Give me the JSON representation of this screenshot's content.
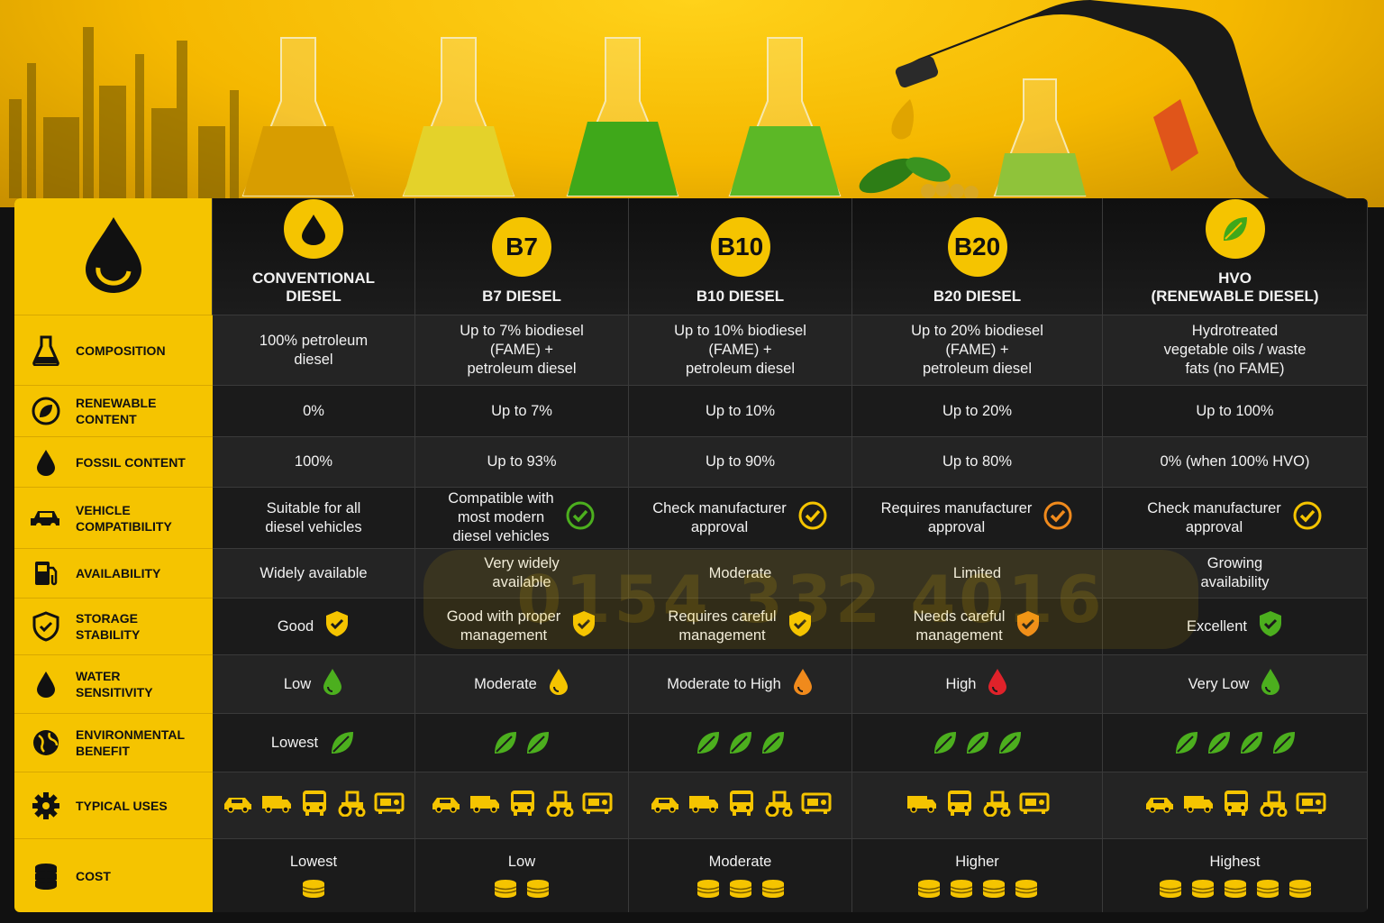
{
  "columns": [
    {
      "badge": "",
      "title": "CONVENTIONAL\nDIESEL"
    },
    {
      "badge": "B7",
      "title": "B7 DIESEL"
    },
    {
      "badge": "B10",
      "title": "B10 DIESEL"
    },
    {
      "badge": "B20",
      "title": "B20 DIESEL"
    },
    {
      "badge": "",
      "title": "HVO\n(RENEWABLE DIESEL)"
    }
  ],
  "rows": {
    "composition": {
      "label": "COMPOSITION",
      "values": [
        "100% petroleum\ndiesel",
        "Up to 7% biodiesel\n(FAME) +\npetroleum diesel",
        "Up to 10% biodiesel\n(FAME) +\npetroleum diesel",
        "Up to 20% biodiesel\n(FAME) +\npetroleum diesel",
        "Hydrotreated\nvegetable oils / waste\nfats (no FAME)"
      ]
    },
    "renewable": {
      "label": "RENEWABLE\nCONTENT",
      "values": [
        "0%",
        "Up to 7%",
        "Up to 10%",
        "Up to 20%",
        "Up to 100%"
      ]
    },
    "fossil": {
      "label": "FOSSIL CONTENT",
      "values": [
        "100%",
        "Up to 93%",
        "Up to 90%",
        "Up to 80%",
        "0% (when 100% HVO)"
      ]
    },
    "vehicle": {
      "label": "VEHICLE\nCOMPATIBILITY",
      "values": [
        "Suitable for all\ndiesel vehicles",
        "Compatible with\nmost modern\ndiesel vehicles",
        "Check manufacturer\napproval",
        "Requires manufacturer\napproval",
        "Check manufacturer\napproval"
      ],
      "icon_colors": [
        "",
        "#4caf1e",
        "#f5c400",
        "#f08a1c",
        "#f5c400"
      ]
    },
    "availability": {
      "label": "AVAILABILITY",
      "values": [
        "Widely available",
        "Very widely\navailable",
        "Moderate",
        "Limited",
        "Growing\navailability"
      ]
    },
    "storage": {
      "label": "STORAGE\nSTABILITY",
      "values": [
        "Good",
        "Good with proper\nmanagement",
        "Requires careful\nmanagement",
        "Needs careful\nmanagement",
        "Excellent"
      ],
      "icon_colors": [
        "#f5c400",
        "#f5c400",
        "#f5c400",
        "#f08a1c",
        "#4caf1e"
      ]
    },
    "water": {
      "label": "WATER\nSENSITIVITY",
      "values": [
        "Low",
        "Moderate",
        "Moderate to High",
        "High",
        "Very Low"
      ],
      "icon_colors": [
        "#4caf1e",
        "#f5c400",
        "#f08a1c",
        "#e0222a",
        "#4caf1e"
      ]
    },
    "environment": {
      "label": "ENVIRONMENTAL\nBENEFIT",
      "values": [
        "Lowest",
        "",
        "",
        "",
        ""
      ],
      "leaf_counts": [
        1,
        2,
        3,
        3,
        4
      ]
    },
    "uses": {
      "label": "TYPICAL USES",
      "vehicles": [
        [
          "car",
          "van",
          "bus",
          "tractor",
          "generator"
        ],
        [
          "car",
          "van",
          "bus",
          "tractor",
          "generator"
        ],
        [
          "car",
          "van",
          "bus",
          "tractor",
          "generator"
        ],
        [
          "van",
          "bus",
          "tractor",
          "generator"
        ],
        [
          "car",
          "van",
          "bus",
          "tractor",
          "generator"
        ]
      ]
    },
    "cost": {
      "label": "COST",
      "values": [
        "Lowest",
        "Low",
        "Moderate",
        "Higher",
        "Highest"
      ],
      "coin_counts": [
        1,
        2,
        3,
        4,
        5
      ]
    }
  },
  "icons": {
    "header": "fuel-drop-icon",
    "composition": "flask-icon",
    "renewable": "leaf-circle-icon",
    "fossil": "oil-drop-icon",
    "vehicle": "car-icon",
    "availability": "fuel-pump-icon",
    "storage": "shield-check-icon",
    "water": "water-drop-icon",
    "environment": "globe-icon",
    "uses": "gear-icon",
    "cost": "coin-stack-icon"
  },
  "colors": {
    "accent": "#f5c400",
    "good": "#4caf1e",
    "warn": "#f08a1c",
    "bad": "#e0222a"
  },
  "watermark": "0154 332 4016"
}
